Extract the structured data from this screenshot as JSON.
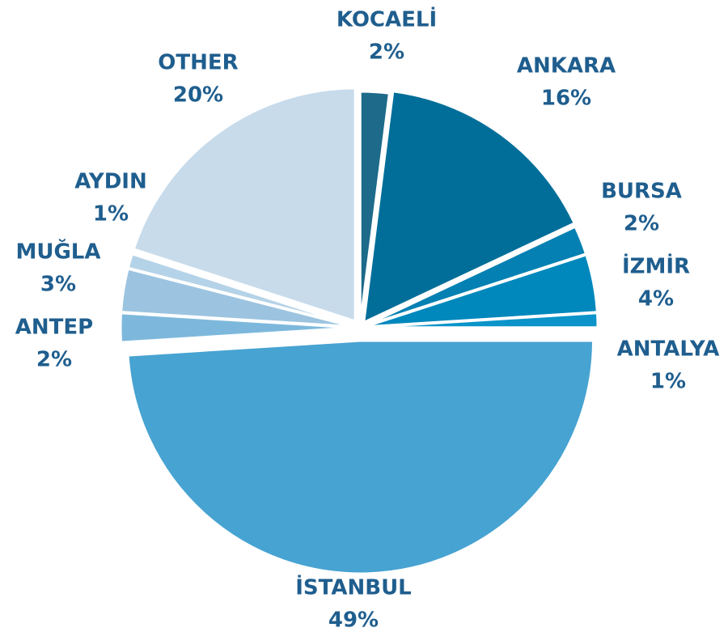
{
  "chart_data": {
    "type": "pie",
    "categories": [
      "KOCAELİ",
      "ANKARA",
      "BURSA",
      "İZMİR",
      "ANTALYA",
      "İSTANBUL",
      "ANTEP",
      "MUĞLA",
      "AYDIN",
      "OTHER"
    ],
    "values": [
      2,
      16,
      2,
      4,
      1,
      49,
      2,
      3,
      1,
      20
    ],
    "value_labels": [
      "2%",
      "16%",
      "2%",
      "4%",
      "1%",
      "49%",
      "2%",
      "3%",
      "1%",
      "20%"
    ],
    "colors": [
      "#1d6a8a",
      "#006e99",
      "#0580b2",
      "#0088bd",
      "#0a94c9",
      "#47a3d1",
      "#7db8dc",
      "#9cc4e0",
      "#b5d3e8",
      "#c7dbeb"
    ]
  }
}
